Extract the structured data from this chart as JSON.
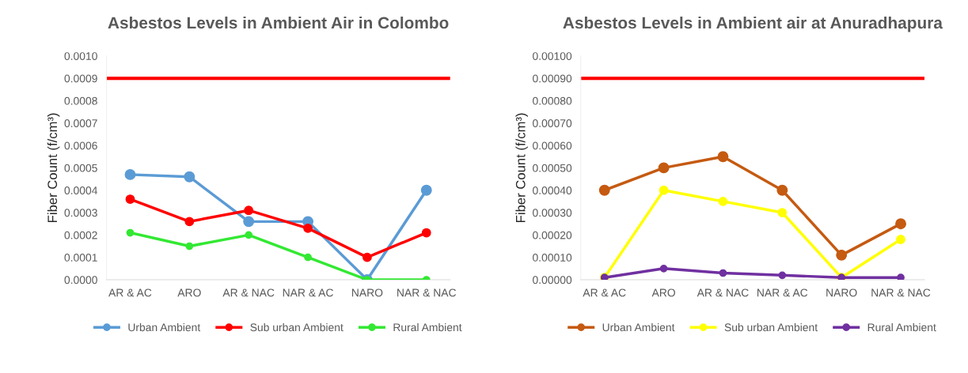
{
  "chart_data": [
    {
      "type": "line",
      "title": "Asbestos Levels in Ambient Air in Colombo",
      "ylabel": "Fiber Count (f/cm³)",
      "categories": [
        "AR & AC",
        "ARO",
        "AR & NAC",
        "NAR & AC",
        "NARO",
        "NAR & NAC"
      ],
      "series": [
        {
          "name": "Urban Ambient",
          "color": "#5b9bd5",
          "values": [
            0.00047,
            0.00046,
            0.00026,
            0.00026,
            0.0,
            0.0004
          ]
        },
        {
          "name": "Sub urban Ambient",
          "color": "#ff0000",
          "values": [
            0.00036,
            0.00026,
            0.00031,
            0.00023,
            0.0001,
            0.00021
          ]
        },
        {
          "name": "Rural Ambient",
          "color": "#33e833",
          "values": [
            0.00021,
            0.00015,
            0.0002,
            0.0001,
            0.0,
            0.0
          ]
        }
      ],
      "ylim": [
        0,
        0.001
      ],
      "yticks": [
        {
          "value": 0,
          "label": "0.0000"
        },
        {
          "value": 0.0001,
          "label": "0.0001"
        },
        {
          "value": 0.0002,
          "label": "0.0002"
        },
        {
          "value": 0.0003,
          "label": "0.0003"
        },
        {
          "value": 0.0004,
          "label": "0.0004"
        },
        {
          "value": 0.0005,
          "label": "0.0005"
        },
        {
          "value": 0.0006,
          "label": "0.0006"
        },
        {
          "value": 0.0007,
          "label": "0.0007"
        },
        {
          "value": 0.0008,
          "label": "0.0008"
        },
        {
          "value": 0.0009,
          "label": "0.0009"
        },
        {
          "value": 0.001,
          "label": "0.0010"
        }
      ],
      "ref_lines": [
        {
          "axis": "y",
          "value": 0.0009,
          "color": "#ff0000"
        }
      ],
      "marker": "circle",
      "line_style": "solid",
      "grid": false,
      "legend": "bottom"
    },
    {
      "type": "line",
      "title": "Asbestos Levels in Ambient air at Anuradhapura",
      "ylabel": "Fiber Count (f/cm³)",
      "categories": [
        "AR & AC",
        "ARO",
        "AR & NAC",
        "NAR & AC",
        "NARO",
        "NAR & NAC"
      ],
      "series": [
        {
          "name": "Urban Ambient",
          "color": "#c55a11",
          "values": [
            0.0004,
            0.0005,
            0.00055,
            0.0004,
            0.00011,
            0.00025
          ]
        },
        {
          "name": "Sub urban Ambient",
          "color": "#ffff00",
          "values": [
            1e-05,
            0.0004,
            0.00035,
            0.0003,
            1e-05,
            0.00018
          ]
        },
        {
          "name": "Rural Ambient",
          "color": "#7030a0",
          "values": [
            1e-05,
            5e-05,
            3e-05,
            2e-05,
            1e-05,
            1e-05
          ]
        }
      ],
      "ylim": [
        0,
        0.001
      ],
      "yticks": [
        {
          "value": 0,
          "label": "0.00000"
        },
        {
          "value": 0.0001,
          "label": "0.00010"
        },
        {
          "value": 0.0002,
          "label": "0.00020"
        },
        {
          "value": 0.0003,
          "label": "0.00030"
        },
        {
          "value": 0.0004,
          "label": "0.00040"
        },
        {
          "value": 0.0005,
          "label": "0.00050"
        },
        {
          "value": 0.0006,
          "label": "0.00060"
        },
        {
          "value": 0.0007,
          "label": "0.00070"
        },
        {
          "value": 0.0008,
          "label": "0.00080"
        },
        {
          "value": 0.0009,
          "label": "0.00090"
        },
        {
          "value": 0.001,
          "label": "0.00100"
        }
      ],
      "ref_lines": [
        {
          "axis": "y",
          "value": 0.0009,
          "color": "#ff0000"
        }
      ],
      "marker": "circle",
      "line_style": "solid",
      "grid": false,
      "legend": "bottom"
    }
  ]
}
